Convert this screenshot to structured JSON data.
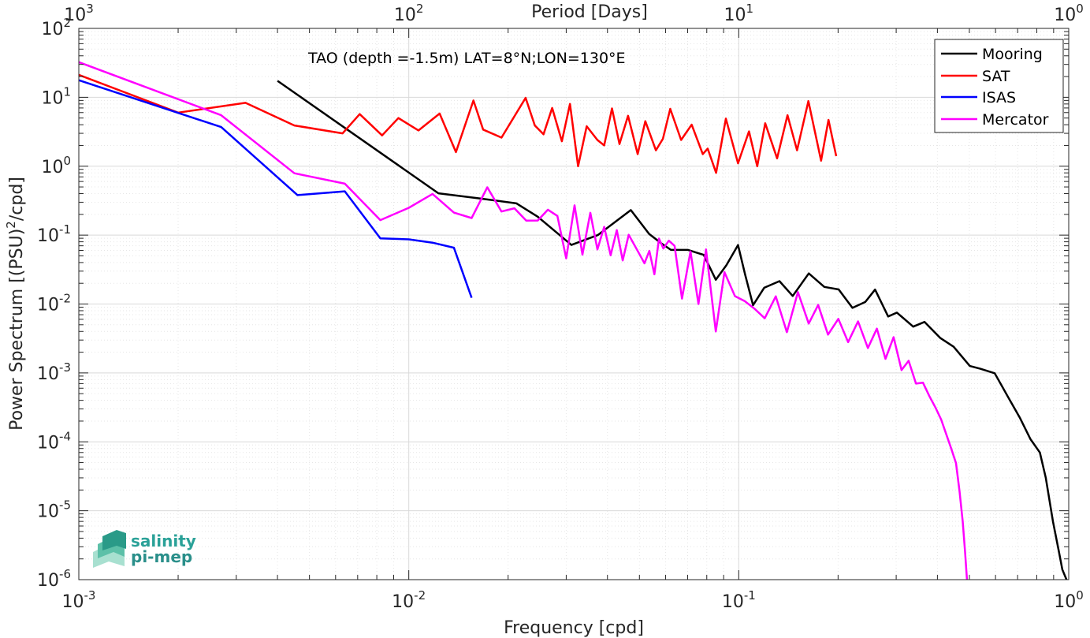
{
  "chart_data": {
    "type": "line",
    "title": "TAO (depth =-1.5m) LAT=8°N;LON=130°E",
    "xlabel": "Frequency [cpd]",
    "ylabel_main": "Power Spectrum [(PSU)",
    "ylabel_sup": "2",
    "ylabel_tail": "/cpd]",
    "top_xlabel": "Period [Days]",
    "xscale": "log",
    "yscale": "log",
    "xlim": [
      0.001,
      1
    ],
    "ylim": [
      1e-06,
      100
    ],
    "grid": true,
    "legend_position": "top-right",
    "x_ticks": [
      {
        "base": "10",
        "exp": "-3"
      },
      {
        "base": "10",
        "exp": "-2"
      },
      {
        "base": "10",
        "exp": "-1"
      },
      {
        "base": "10",
        "exp": "0"
      }
    ],
    "y_ticks": [
      {
        "base": "10",
        "exp": "-6"
      },
      {
        "base": "10",
        "exp": "-5"
      },
      {
        "base": "10",
        "exp": "-4"
      },
      {
        "base": "10",
        "exp": "-3"
      },
      {
        "base": "10",
        "exp": "-2"
      },
      {
        "base": "10",
        "exp": "-1"
      },
      {
        "base": "10",
        "exp": "0"
      },
      {
        "base": "10",
        "exp": "1"
      },
      {
        "base": "10",
        "exp": "2"
      }
    ],
    "top_ticks": [
      {
        "base": "10",
        "exp": "3"
      },
      {
        "base": "10",
        "exp": "2"
      },
      {
        "base": "10",
        "exp": "1"
      },
      {
        "base": "10",
        "exp": "0"
      }
    ],
    "series": [
      {
        "name": "Mooring",
        "color": "#000000",
        "x": [
          0.004,
          0.0123,
          0.0164,
          0.0212,
          0.0246,
          0.0311,
          0.0374,
          0.0471,
          0.0535,
          0.0583,
          0.0623,
          0.0702,
          0.0783,
          0.0852,
          0.0917,
          0.0995,
          0.1045,
          0.1105,
          0.1194,
          0.1329,
          0.1457,
          0.163,
          0.1817,
          0.2008,
          0.2211,
          0.2418,
          0.2589,
          0.2837,
          0.3015,
          0.3379,
          0.3657,
          0.4085,
          0.4479,
          0.5016,
          0.5394,
          0.5968,
          0.6526,
          0.7121,
          0.7649,
          0.8175,
          0.8519,
          0.8956,
          0.9344,
          0.9566,
          0.9845
        ],
        "y": [
          17.35,
          0.404,
          0.341,
          0.289,
          0.185,
          0.072,
          0.1,
          0.231,
          0.104,
          0.0758,
          0.0609,
          0.0609,
          0.0517,
          0.0225,
          0.0365,
          0.0718,
          0.0271,
          0.0096,
          0.0172,
          0.0215,
          0.0131,
          0.0278,
          0.0177,
          0.0163,
          0.0088,
          0.0107,
          0.0162,
          0.0066,
          0.0075,
          0.0047,
          0.0055,
          0.0032,
          0.0024,
          0.00126,
          0.00115,
          0.00099,
          0.00046,
          0.00022,
          0.00011,
          7e-05,
          3e-05,
          7e-06,
          2.5e-06,
          1.4e-06,
          1e-06
        ]
      },
      {
        "name": "SAT",
        "color": "#ff0000",
        "x": [
          0.001,
          0.002,
          0.0032,
          0.0045,
          0.0063,
          0.0071,
          0.0083,
          0.0093,
          0.0107,
          0.0124,
          0.0139,
          0.0157,
          0.0168,
          0.0191,
          0.0226,
          0.0241,
          0.0256,
          0.0272,
          0.0291,
          0.0308,
          0.0326,
          0.0346,
          0.0373,
          0.0391,
          0.0413,
          0.0435,
          0.0462,
          0.0494,
          0.0521,
          0.0561,
          0.0589,
          0.062,
          0.0669,
          0.072,
          0.0778,
          0.0805,
          0.0854,
          0.0914,
          0.0995,
          0.1074,
          0.1138,
          0.1203,
          0.1307,
          0.1405,
          0.1502,
          0.1626,
          0.1776,
          0.1871,
          0.1974
        ],
        "y": [
          21.2,
          6.0,
          8.3,
          3.9,
          3.0,
          5.7,
          2.8,
          5.0,
          3.3,
          5.8,
          1.6,
          9.0,
          3.4,
          2.6,
          9.8,
          3.9,
          2.9,
          7.0,
          2.3,
          8.0,
          1.0,
          3.8,
          2.4,
          2.0,
          6.9,
          2.1,
          5.4,
          1.5,
          4.5,
          1.7,
          2.5,
          6.8,
          2.4,
          4.0,
          1.5,
          1.8,
          0.8,
          4.9,
          1.1,
          3.2,
          1.0,
          4.2,
          1.3,
          5.5,
          1.7,
          8.8,
          1.2,
          4.7,
          1.4
        ]
      },
      {
        "name": "ISAS",
        "color": "#0000ff",
        "x": [
          0.001,
          0.0027,
          0.0046,
          0.0064,
          0.0082,
          0.01,
          0.0118,
          0.0137,
          0.0155
        ],
        "y": [
          17.7,
          3.7,
          0.381,
          0.432,
          0.0895,
          0.0868,
          0.0778,
          0.0657,
          0.0123
        ]
      },
      {
        "name": "Mercator",
        "color": "#ff00ff",
        "x": [
          0.001,
          0.0027,
          0.0045,
          0.0064,
          0.0082,
          0.01,
          0.0118,
          0.0137,
          0.0155,
          0.0173,
          0.0191,
          0.0209,
          0.0227,
          0.0246,
          0.0264,
          0.0282,
          0.03,
          0.0318,
          0.0336,
          0.0355,
          0.0373,
          0.0391,
          0.0409,
          0.0427,
          0.0445,
          0.0464,
          0.0482,
          0.05,
          0.0518,
          0.0536,
          0.0555,
          0.0573,
          0.0591,
          0.0614,
          0.0639,
          0.0673,
          0.0714,
          0.0755,
          0.0796,
          0.0852,
          0.0905,
          0.0974,
          0.1043,
          0.1118,
          0.1199,
          0.1295,
          0.1399,
          0.1511,
          0.1629,
          0.1741,
          0.1864,
          0.2004,
          0.2145,
          0.2299,
          0.2463,
          0.2622,
          0.2784,
          0.2946,
          0.3115,
          0.3273,
          0.3445,
          0.3618,
          0.3782,
          0.3951,
          0.4108,
          0.4253,
          0.4404,
          0.4554,
          0.4669,
          0.4772,
          0.4852,
          0.4915
        ],
        "y": [
          32.4,
          5.5,
          0.79,
          0.558,
          0.165,
          0.249,
          0.396,
          0.212,
          0.177,
          0.494,
          0.22,
          0.245,
          0.162,
          0.163,
          0.234,
          0.19,
          0.046,
          0.27,
          0.052,
          0.211,
          0.062,
          0.132,
          0.051,
          0.118,
          0.043,
          0.101,
          0.073,
          0.053,
          0.039,
          0.059,
          0.027,
          0.089,
          0.064,
          0.083,
          0.07,
          0.012,
          0.058,
          0.01,
          0.062,
          0.004,
          0.029,
          0.013,
          0.011,
          0.0085,
          0.0062,
          0.0129,
          0.0039,
          0.0149,
          0.0052,
          0.0097,
          0.0036,
          0.0061,
          0.0028,
          0.0056,
          0.0023,
          0.0044,
          0.0016,
          0.0033,
          0.0011,
          0.0015,
          0.0007,
          0.00072,
          0.00046,
          0.00031,
          0.00021,
          0.00013,
          8e-05,
          4.9e-05,
          1.9e-05,
          7e-06,
          2.5e-06,
          1e-06
        ]
      }
    ]
  },
  "logo": {
    "line1": "salinity",
    "line2": "pi-mep",
    "color": "#2aa198"
  }
}
